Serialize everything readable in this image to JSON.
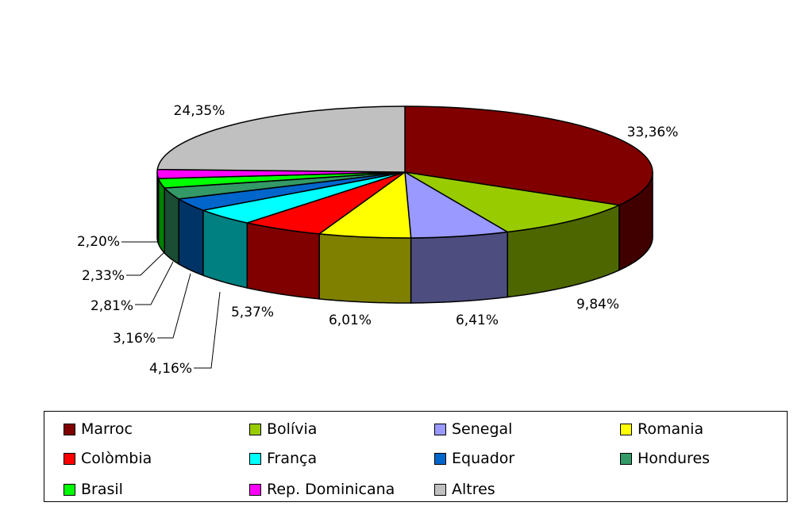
{
  "chart_data": {
    "type": "pie",
    "three_d": true,
    "title": "",
    "categories": [
      "Marroc",
      "Bolívia",
      "Senegal",
      "Romania",
      "Colòmbia",
      "França",
      "Equador",
      "Hondures",
      "Brasil",
      "Rep. Dominicana",
      "Altres"
    ],
    "values": [
      33.36,
      9.84,
      6.41,
      6.01,
      5.37,
      4.16,
      3.16,
      2.81,
      2.33,
      2.2,
      24.35
    ],
    "labels": [
      "33,36%",
      "9,84%",
      "6,41%",
      "6,01%",
      "5,37%",
      "4,16%",
      "3,16%",
      "2,81%",
      "2,33%",
      "2,20%",
      "24,35%"
    ],
    "colors": [
      "#800000",
      "#99CC00",
      "#9999FF",
      "#FFFF00",
      "#FF0000",
      "#00FFFF",
      "#0066CC",
      "#339966",
      "#00FF00",
      "#FF00FF",
      "#C0C0C0"
    ],
    "legend_position": "bottom"
  }
}
